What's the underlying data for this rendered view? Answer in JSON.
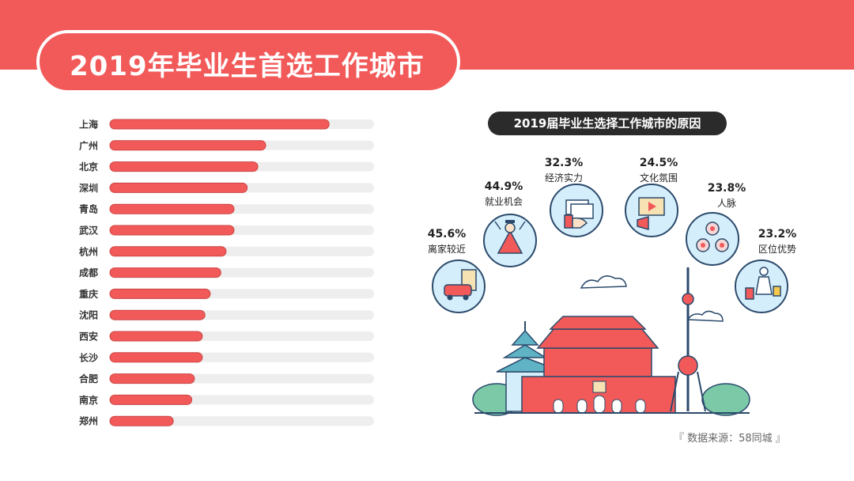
{
  "title": "2019年毕业生首选工作城市",
  "reasons_title": "2019届毕业生选择工作城市的原因",
  "source": "『 数据来源：58同城 』",
  "colors": {
    "accent": "#f25a5a",
    "track": "#eeeeee",
    "dark": "#2b2b2b",
    "bubble": "#d5eefb",
    "bubble_stroke": "#2b4a6b"
  },
  "chart_data": [
    {
      "type": "bar",
      "orientation": "horizontal",
      "categories": [
        "上海",
        "广州",
        "北京",
        "深圳",
        "青岛",
        "武汉",
        "杭州",
        "成都",
        "重庆",
        "沈阳",
        "西安",
        "长沙",
        "合肥",
        "南京",
        "郑州"
      ],
      "values": [
        83,
        59,
        56,
        52,
        47,
        47,
        44,
        42,
        38,
        36,
        35,
        35,
        32,
        31,
        24
      ],
      "xlim": [
        0,
        100
      ],
      "grid": false
    },
    {
      "type": "bubble",
      "title": "2019届毕业生选择工作城市的原因",
      "items": [
        {
          "label": "离家较近",
          "value": "45.6%",
          "icon": "car-building-icon"
        },
        {
          "label": "就业机会",
          "value": "44.9%",
          "icon": "graduate-hero-icon"
        },
        {
          "label": "经济实力",
          "value": "32.3%",
          "icon": "money-icon"
        },
        {
          "label": "文化氛围",
          "value": "24.5%",
          "icon": "media-icon"
        },
        {
          "label": "人脉",
          "value": "23.8%",
          "icon": "people-network-icon"
        },
        {
          "label": "区位优势",
          "value": "23.2%",
          "icon": "traveler-icon"
        }
      ]
    }
  ]
}
